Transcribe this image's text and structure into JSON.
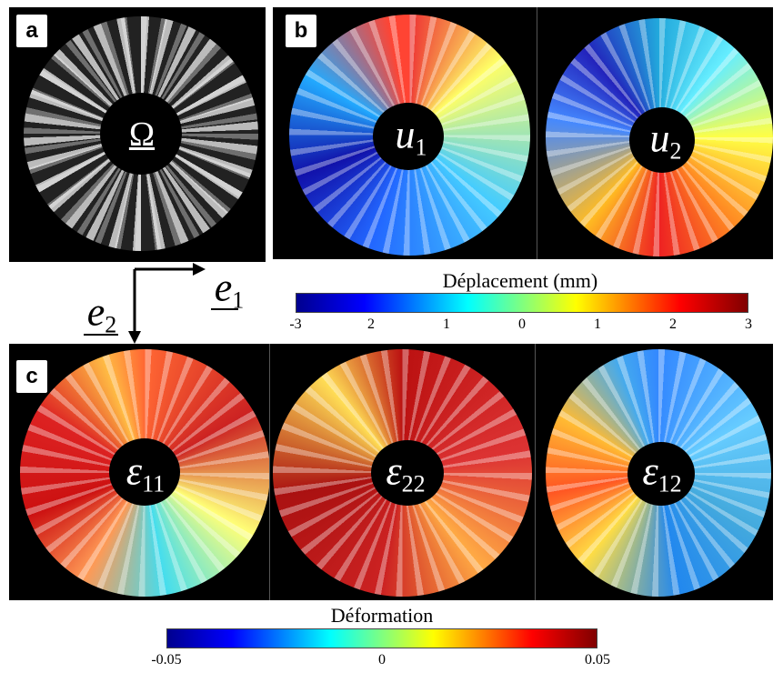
{
  "panels": {
    "a": {
      "label": "a",
      "symbol": "Ω"
    },
    "b": {
      "label": "b",
      "fields": [
        {
          "base": "u",
          "sub": "1"
        },
        {
          "base": "u",
          "sub": "2"
        }
      ]
    },
    "c": {
      "label": "c",
      "fields": [
        {
          "base": "ε",
          "sub": "11"
        },
        {
          "base": "ε",
          "sub": "22"
        },
        {
          "base": "ε",
          "sub": "12"
        }
      ]
    }
  },
  "axes": {
    "e1": {
      "base": "e",
      "sub": "1"
    },
    "e2": {
      "base": "e",
      "sub": "2"
    }
  },
  "colorbars": [
    {
      "title": "Déplacement  (mm)",
      "ticks": [
        "-3",
        "2",
        "1",
        "0",
        "1",
        "2",
        "3"
      ]
    },
    {
      "title": "Déformation",
      "ticks": [
        "-0.05",
        "0",
        "0.05"
      ]
    }
  ]
}
